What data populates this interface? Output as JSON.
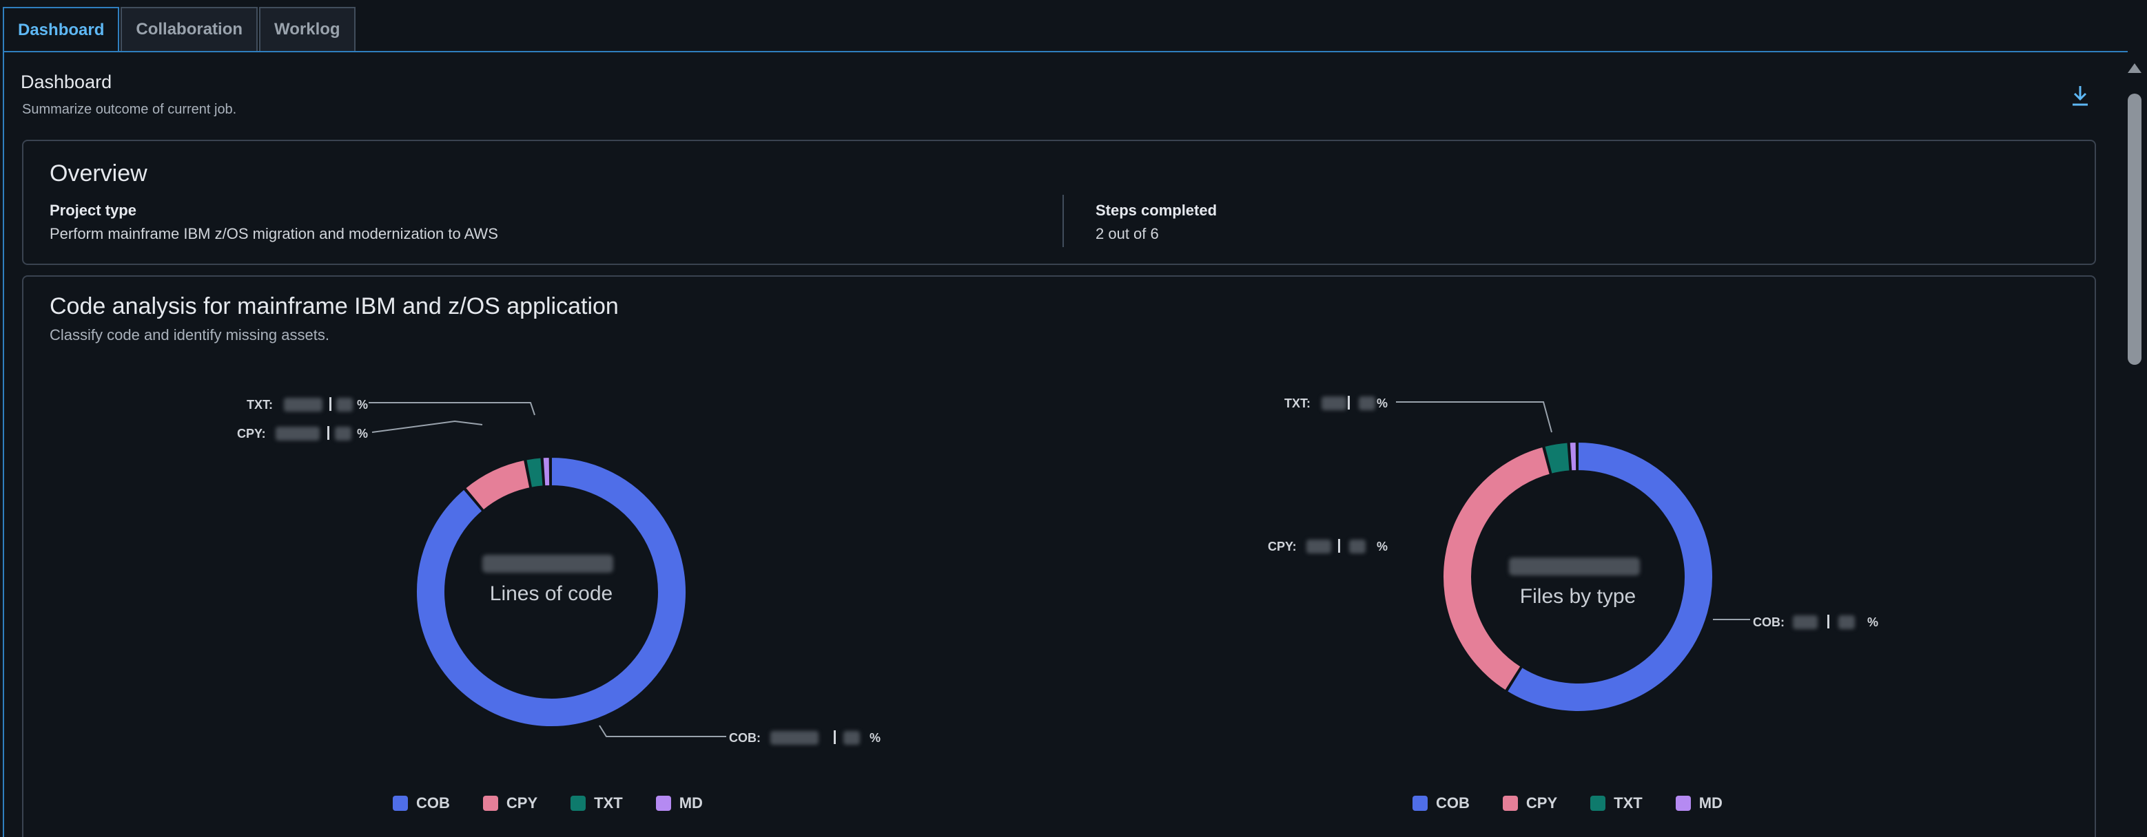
{
  "tabs": [
    {
      "label": "Dashboard",
      "active": true
    },
    {
      "label": "Collaboration",
      "active": false
    },
    {
      "label": "Worklog",
      "active": false
    }
  ],
  "header": {
    "title": "Dashboard",
    "subtitle": "Summarize outcome of current job.",
    "download_icon": "download-icon"
  },
  "overview": {
    "title": "Overview",
    "project_type_label": "Project type",
    "project_type_value": "Perform mainframe IBM z/OS migration and modernization to AWS",
    "steps_label": "Steps completed",
    "steps_value": "2 out of 6"
  },
  "code_analysis": {
    "title": "Code analysis for mainframe IBM and z/OS application",
    "subtitle": "Classify code and identify missing assets."
  },
  "colors": {
    "COB": "#4f6ee8",
    "CPY": "#e57f98",
    "TXT": "#0e7a6c",
    "MD": "#b58af2",
    "accent": "#2f7fbf"
  },
  "chart_data": [
    {
      "type": "pie",
      "donut": true,
      "center_label": "Lines of code",
      "categories": [
        "COB",
        "CPY",
        "TXT",
        "MD"
      ],
      "values": [
        0.89,
        0.08,
        0.02,
        0.01
      ],
      "legend": [
        "COB",
        "CPY",
        "TXT",
        "MD"
      ],
      "legend_position": "bottom",
      "slice_labels": [
        {
          "category": "COB",
          "text": "COB:",
          "suffix": "%"
        },
        {
          "category": "CPY",
          "text": "CPY:",
          "suffix": "%"
        },
        {
          "category": "TXT",
          "text": "TXT:",
          "suffix": "%"
        }
      ]
    },
    {
      "type": "pie",
      "donut": true,
      "center_label": "Files by type",
      "categories": [
        "COB",
        "CPY",
        "TXT",
        "MD"
      ],
      "values": [
        0.59,
        0.37,
        0.03,
        0.01
      ],
      "legend": [
        "COB",
        "CPY",
        "TXT",
        "MD"
      ],
      "legend_position": "bottom",
      "slice_labels": [
        {
          "category": "COB",
          "text": "COB:",
          "suffix": "%"
        },
        {
          "category": "CPY",
          "text": "CPY:",
          "suffix": "%"
        },
        {
          "category": "TXT",
          "text": "TXT:",
          "suffix": "%"
        }
      ]
    }
  ]
}
